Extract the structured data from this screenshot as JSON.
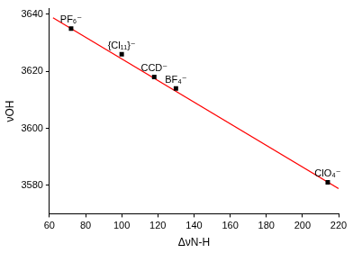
{
  "chart_data": {
    "type": "scatter",
    "x_label": "ΔνN-H",
    "y_label": "νOH",
    "xlim": [
      60,
      220
    ],
    "xticks": [
      60,
      80,
      100,
      120,
      140,
      160,
      180,
      200,
      220
    ],
    "ylim": [
      3570,
      3642
    ],
    "yticks": [
      3580,
      3600,
      3620,
      3640
    ],
    "grid": false,
    "series": [
      {
        "type": "scatter",
        "color": "#000000",
        "marker": "square",
        "x": [
          72,
          100,
          118,
          130,
          214
        ],
        "values": [
          3635,
          3626,
          3618,
          3614,
          3581
        ],
        "labels": [
          "PF₆⁻",
          "{Cl₁₁}⁻",
          "CCD⁻",
          "BF₄⁻",
          "ClO₄⁻"
        ]
      },
      {
        "type": "line",
        "color": "#ff0000",
        "line_style": "solid",
        "x": [
          62,
          220
        ],
        "values": [
          3638.8,
          3578.8
        ]
      }
    ]
  }
}
